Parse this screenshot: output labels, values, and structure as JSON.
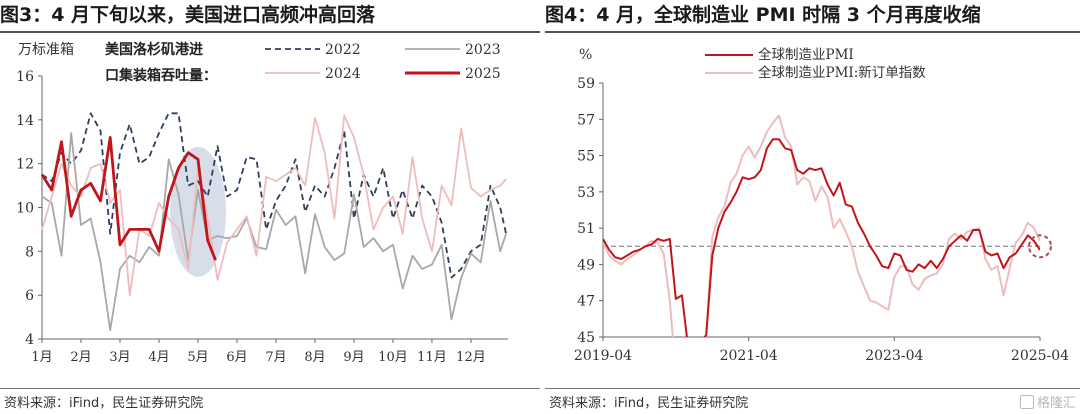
{
  "left": {
    "title": "图3：4 月下旬以来，美国进口高频冲高回落",
    "source": "资料来源：iFind，民生证券研究院",
    "chart_data": {
      "type": "line",
      "unit_label": "万标准箱",
      "legend_title": [
        "美国洛杉矶港进",
        "口集装箱吞吐量："
      ],
      "x_tick_labels": [
        "1月",
        "2月",
        "3月",
        "4月",
        "5月",
        "6月",
        "7月",
        "8月",
        "9月",
        "10月",
        "11月",
        "12月"
      ],
      "x_domain": [
        1,
        12.95
      ],
      "ylim": [
        4,
        16
      ],
      "y_ticks": [
        4,
        6,
        8,
        10,
        12,
        14,
        16
      ],
      "highlight": {
        "x_center": 5.0,
        "y_center": 9.8
      },
      "series": [
        {
          "name": "2022",
          "color": "#2e3f5c",
          "style": "dashed",
          "x": [
            1.0,
            1.25,
            1.5,
            1.75,
            2.0,
            2.25,
            2.5,
            2.75,
            3.0,
            3.25,
            3.5,
            3.75,
            4.0,
            4.25,
            4.5,
            4.75,
            5.0,
            5.25,
            5.5,
            5.75,
            6.0,
            6.25,
            6.5,
            6.75,
            7.0,
            7.25,
            7.5,
            7.75,
            8.0,
            8.25,
            8.5,
            8.75,
            9.0,
            9.25,
            9.5,
            9.75,
            10.0,
            10.25,
            10.5,
            10.75,
            11.0,
            11.25,
            11.5,
            11.75,
            12.0,
            12.25,
            12.5,
            12.75,
            12.9
          ],
          "y": [
            11.5,
            11.2,
            12.5,
            12.0,
            12.6,
            14.3,
            13.5,
            8.8,
            12.5,
            13.8,
            12.0,
            12.3,
            13.4,
            14.3,
            14.3,
            11.0,
            11.2,
            10.5,
            12.8,
            10.5,
            10.8,
            12.3,
            12.2,
            9.0,
            10.3,
            11.0,
            12.2,
            9.8,
            11.0,
            10.5,
            11.8,
            13.5,
            9.5,
            11.5,
            10.5,
            11.8,
            9.5,
            10.8,
            9.5,
            11.0,
            10.5,
            9.3,
            6.8,
            7.2,
            8.0,
            8.3,
            11.0,
            10.0,
            8.8
          ]
        },
        {
          "name": "2023",
          "color": "#a8a8a8",
          "style": "solid",
          "x": [
            1.0,
            1.25,
            1.5,
            1.75,
            2.0,
            2.25,
            2.5,
            2.75,
            3.0,
            3.25,
            3.5,
            3.75,
            4.0,
            4.25,
            4.5,
            4.75,
            5.0,
            5.25,
            5.5,
            5.75,
            6.0,
            6.25,
            6.5,
            6.75,
            7.0,
            7.25,
            7.5,
            7.75,
            8.0,
            8.25,
            8.5,
            8.75,
            9.0,
            9.25,
            9.5,
            9.75,
            10.0,
            10.25,
            10.5,
            10.75,
            11.0,
            11.25,
            11.5,
            11.75,
            12.0,
            12.25,
            12.5,
            12.75,
            12.9
          ],
          "y": [
            10.5,
            10.2,
            7.8,
            13.4,
            9.2,
            9.5,
            7.5,
            4.4,
            7.2,
            7.8,
            7.5,
            8.2,
            7.8,
            12.2,
            10.6,
            7.6,
            10.8,
            8.5,
            8.7,
            8.6,
            8.7,
            9.5,
            8.2,
            8.1,
            9.9,
            9.2,
            9.6,
            7.0,
            9.7,
            8.2,
            7.6,
            7.9,
            10.6,
            8.2,
            8.6,
            8.0,
            8.3,
            6.3,
            7.8,
            7.2,
            7.4,
            8.3,
            4.9,
            6.8,
            7.9,
            7.5,
            10.3,
            8.0,
            8.8
          ]
        },
        {
          "name": "2024",
          "color": "#eebcbc",
          "style": "solid",
          "x": [
            1.0,
            1.25,
            1.5,
            1.75,
            2.0,
            2.25,
            2.5,
            2.75,
            3.0,
            3.25,
            3.5,
            3.75,
            4.0,
            4.25,
            4.5,
            4.75,
            5.0,
            5.25,
            5.5,
            5.75,
            6.0,
            6.25,
            6.5,
            6.75,
            7.0,
            7.25,
            7.5,
            7.75,
            8.0,
            8.25,
            8.5,
            8.75,
            9.0,
            9.25,
            9.5,
            9.75,
            10.0,
            10.25,
            10.5,
            10.75,
            11.0,
            11.25,
            11.5,
            11.75,
            12.0,
            12.25,
            12.5,
            12.75,
            12.9
          ],
          "y": [
            9.0,
            10.5,
            12.0,
            11.0,
            10.5,
            11.8,
            12.0,
            10.2,
            10.8,
            6.0,
            9.0,
            8.7,
            10.2,
            9.5,
            9.0,
            7.2,
            11.8,
            9.5,
            6.7,
            8.4,
            9.0,
            9.6,
            7.8,
            11.4,
            11.2,
            11.5,
            11.8,
            11.0,
            14.1,
            12.5,
            9.5,
            14.2,
            13.2,
            11.5,
            9.0,
            10.0,
            10.5,
            8.8,
            12.3,
            9.5,
            8.0,
            11.0,
            10.1,
            13.6,
            10.9,
            10.5,
            10.8,
            11.0,
            11.3
          ]
        },
        {
          "name": "2025",
          "color": "#c0161b",
          "style": "solid",
          "x": [
            1.0,
            1.25,
            1.5,
            1.75,
            2.0,
            2.25,
            2.5,
            2.75,
            3.0,
            3.25,
            3.5,
            3.75,
            4.0,
            4.25,
            4.5,
            4.75,
            5.0,
            5.25,
            5.45
          ],
          "y": [
            11.5,
            10.8,
            13.0,
            9.6,
            10.8,
            11.1,
            10.3,
            13.2,
            8.3,
            9.0,
            9.0,
            9.0,
            8.0,
            10.5,
            11.8,
            12.5,
            12.2,
            8.5,
            7.6
          ]
        }
      ],
      "legend": [
        {
          "name": "2022",
          "series": 0
        },
        {
          "name": "2023",
          "series": 1
        },
        {
          "name": "2024",
          "series": 2
        },
        {
          "name": "2025",
          "series": 3
        }
      ]
    }
  },
  "right": {
    "title": "图4：4 月，全球制造业 PMI 时隔 3 个月再度收缩",
    "source": "资料来源：iFind，民生证券研究院",
    "watermark": "格隆汇",
    "chart_data": {
      "type": "line",
      "unit_label": "%",
      "ylim": [
        45,
        59
      ],
      "y_ticks": [
        45,
        47,
        49,
        51,
        53,
        55,
        57,
        59
      ],
      "x_domain": [
        "2019-04",
        "2025-04"
      ],
      "x_ticks": [
        "2019-04",
        "2021-04",
        "2023-04",
        "2025-04"
      ],
      "reference_line": 50,
      "highlight": {
        "date": "2025-04",
        "value": 50.0
      },
      "series": [
        {
          "name": "全球制造业PMI",
          "color": "#c0161b",
          "points": [
            [
              "2019-04",
              50.4
            ],
            [
              "2019-05",
              49.8
            ],
            [
              "2019-06",
              49.4
            ],
            [
              "2019-07",
              49.3
            ],
            [
              "2019-08",
              49.5
            ],
            [
              "2019-09",
              49.7
            ],
            [
              "2019-10",
              49.8
            ],
            [
              "2019-11",
              50.0
            ],
            [
              "2019-12",
              50.1
            ],
            [
              "2020-01",
              50.4
            ],
            [
              "2020-02",
              50.3
            ],
            [
              "2020-03",
              50.4
            ],
            [
              "2020-04",
              47.1
            ],
            [
              "2020-05",
              47.3
            ],
            [
              "2020-06",
              44.5
            ],
            [
              "2020-07",
              44.9
            ],
            [
              "2020-08",
              44.7
            ],
            [
              "2020-09",
              45.1
            ],
            [
              "2020-10",
              49.5
            ],
            [
              "2020-11",
              51.0
            ],
            [
              "2020-12",
              51.9
            ],
            [
              "2021-01",
              52.4
            ],
            [
              "2021-02",
              53.0
            ],
            [
              "2021-03",
              53.8
            ],
            [
              "2021-04",
              53.7
            ],
            [
              "2021-05",
              53.8
            ],
            [
              "2021-06",
              54.2
            ],
            [
              "2021-07",
              55.4
            ],
            [
              "2021-08",
              55.9
            ],
            [
              "2021-09",
              55.9
            ],
            [
              "2021-10",
              55.4
            ],
            [
              "2021-11",
              55.3
            ],
            [
              "2021-12",
              54.2
            ],
            [
              "2022-01",
              54.0
            ],
            [
              "2022-02",
              54.3
            ],
            [
              "2022-03",
              54.2
            ],
            [
              "2022-04",
              54.3
            ],
            [
              "2022-05",
              53.4
            ],
            [
              "2022-06",
              52.8
            ],
            [
              "2022-07",
              53.5
            ],
            [
              "2022-08",
              52.3
            ],
            [
              "2022-09",
              52.2
            ],
            [
              "2022-10",
              51.3
            ],
            [
              "2022-11",
              50.7
            ],
            [
              "2022-12",
              50.0
            ],
            [
              "2023-01",
              49.5
            ],
            [
              "2023-02",
              48.9
            ],
            [
              "2023-03",
              48.8
            ],
            [
              "2023-04",
              49.6
            ],
            [
              "2023-05",
              49.5
            ],
            [
              "2023-06",
              48.7
            ],
            [
              "2023-07",
              48.6
            ],
            [
              "2023-08",
              49.0
            ],
            [
              "2023-09",
              48.8
            ],
            [
              "2023-10",
              49.2
            ],
            [
              "2023-11",
              48.8
            ],
            [
              "2023-12",
              49.3
            ],
            [
              "2024-01",
              50.0
            ],
            [
              "2024-02",
              50.3
            ],
            [
              "2024-03",
              50.6
            ],
            [
              "2024-04",
              50.3
            ],
            [
              "2024-05",
              50.9
            ],
            [
              "2024-06",
              50.9
            ],
            [
              "2024-07",
              49.7
            ],
            [
              "2024-08",
              49.5
            ],
            [
              "2024-09",
              49.6
            ],
            [
              "2024-10",
              48.8
            ],
            [
              "2024-11",
              49.4
            ],
            [
              "2024-12",
              49.6
            ],
            [
              "2025-01",
              50.1
            ],
            [
              "2025-02",
              50.6
            ],
            [
              "2025-03",
              50.3
            ],
            [
              "2025-04",
              49.8
            ]
          ]
        },
        {
          "name": "全球制造业PMI:新订单指数",
          "color": "#eebcbc",
          "points": [
            [
              "2019-04",
              50.2
            ],
            [
              "2019-05",
              49.5
            ],
            [
              "2019-06",
              49.2
            ],
            [
              "2019-07",
              49.0
            ],
            [
              "2019-08",
              49.3
            ],
            [
              "2019-09",
              49.5
            ],
            [
              "2019-10",
              49.8
            ],
            [
              "2019-11",
              50.0
            ],
            [
              "2019-12",
              50.3
            ],
            [
              "2020-01",
              50.2
            ],
            [
              "2020-02",
              49.6
            ],
            [
              "2020-03",
              47.0
            ],
            [
              "2020-04",
              43.0
            ],
            [
              "2020-05",
              44.5
            ],
            [
              "2020-06",
              43.5
            ],
            [
              "2020-07",
              44.0
            ],
            [
              "2020-08",
              44.5
            ],
            [
              "2020-09",
              45.0
            ],
            [
              "2020-10",
              50.5
            ],
            [
              "2020-11",
              51.6
            ],
            [
              "2020-12",
              52.2
            ],
            [
              "2021-01",
              53.5
            ],
            [
              "2021-02",
              54.0
            ],
            [
              "2021-03",
              55.0
            ],
            [
              "2021-04",
              55.5
            ],
            [
              "2021-05",
              54.9
            ],
            [
              "2021-06",
              55.5
            ],
            [
              "2021-07",
              56.3
            ],
            [
              "2021-08",
              56.8
            ],
            [
              "2021-09",
              57.2
            ],
            [
              "2021-10",
              56.0
            ],
            [
              "2021-11",
              55.5
            ],
            [
              "2021-12",
              53.4
            ],
            [
              "2022-01",
              53.8
            ],
            [
              "2022-02",
              53.6
            ],
            [
              "2022-03",
              52.5
            ],
            [
              "2022-04",
              53.3
            ],
            [
              "2022-05",
              52.7
            ],
            [
              "2022-06",
              51.0
            ],
            [
              "2022-07",
              51.5
            ],
            [
              "2022-08",
              50.8
            ],
            [
              "2022-09",
              50.0
            ],
            [
              "2022-10",
              48.6
            ],
            [
              "2022-11",
              47.8
            ],
            [
              "2022-12",
              47.0
            ],
            [
              "2023-01",
              46.9
            ],
            [
              "2023-02",
              46.7
            ],
            [
              "2023-03",
              46.5
            ],
            [
              "2023-04",
              48.3
            ],
            [
              "2023-05",
              48.9
            ],
            [
              "2023-06",
              48.9
            ],
            [
              "2023-07",
              47.9
            ],
            [
              "2023-08",
              47.6
            ],
            [
              "2023-09",
              48.2
            ],
            [
              "2023-10",
              48.4
            ],
            [
              "2023-11",
              48.5
            ],
            [
              "2023-12",
              49.0
            ],
            [
              "2024-01",
              50.4
            ],
            [
              "2024-02",
              50.7
            ],
            [
              "2024-03",
              50.4
            ],
            [
              "2024-04",
              50.8
            ],
            [
              "2024-05",
              50.9
            ],
            [
              "2024-06",
              51.0
            ],
            [
              "2024-07",
              49.3
            ],
            [
              "2024-08",
              48.7
            ],
            [
              "2024-09",
              48.9
            ],
            [
              "2024-10",
              47.3
            ],
            [
              "2024-11",
              48.8
            ],
            [
              "2024-12",
              50.2
            ],
            [
              "2025-01",
              50.6
            ],
            [
              "2025-02",
              51.3
            ],
            [
              "2025-03",
              51.0
            ],
            [
              "2025-04",
              50.3
            ]
          ]
        }
      ]
    }
  }
}
